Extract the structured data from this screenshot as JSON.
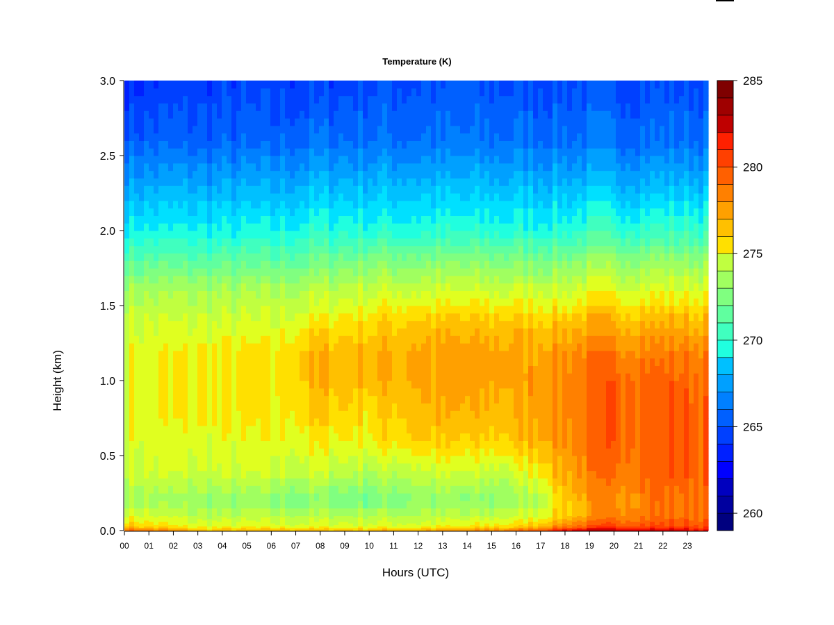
{
  "chart_data": {
    "type": "heatmap",
    "title": "Temperature (K)",
    "xlabel": "Hours (UTC)",
    "ylabel": "Height (km)",
    "x_tick_labels": [
      "00",
      "01",
      "02",
      "03",
      "04",
      "05",
      "06",
      "07",
      "08",
      "09",
      "10",
      "11",
      "12",
      "13",
      "14",
      "15",
      "16",
      "17",
      "18",
      "19",
      "20",
      "21",
      "22",
      "23"
    ],
    "y_ticks": [
      {
        "value": 0.0,
        "label": "0.0"
      },
      {
        "value": 0.5,
        "label": "0.5"
      },
      {
        "value": 1.0,
        "label": "1.0"
      },
      {
        "value": 1.5,
        "label": "1.5"
      },
      {
        "value": 2.0,
        "label": "2.0"
      },
      {
        "value": 2.5,
        "label": "2.5"
      },
      {
        "value": 3.0,
        "label": "3.0"
      }
    ],
    "xlim": [
      0,
      23.85
    ],
    "ylim": [
      0,
      3.0
    ],
    "colorbar": {
      "range": [
        259,
        285
      ],
      "levels": 26,
      "tick_values": [
        260,
        265,
        270,
        275,
        280,
        285
      ],
      "tick_labels": [
        "260",
        "265",
        "270",
        "275",
        "280",
        "285"
      ],
      "colors": [
        "#00007F",
        "#00009F",
        "#0000BF",
        "#0000DF",
        "#0000FF",
        "#0020FF",
        "#0040FF",
        "#0060FF",
        "#0080FF",
        "#00A0FF",
        "#00C0FF",
        "#00E0FF",
        "#20FFDF",
        "#40FFBF",
        "#60FF9F",
        "#80FF80",
        "#A0FF60",
        "#C0FF40",
        "#E0FF20",
        "#FFE000",
        "#FFC000",
        "#FFA000",
        "#FF8000",
        "#FF6000",
        "#FF4000",
        "#FF2000",
        "#DF0000",
        "#BF0000",
        "#9F0000",
        "#7F0000"
      ]
    },
    "temperature_profile_by_hour": {
      "hours": [
        0,
        3,
        6,
        8,
        10,
        12,
        14,
        16,
        17,
        18,
        19,
        20,
        22,
        23.85
      ],
      "heights_km": [
        0.0,
        0.03,
        0.1,
        0.2,
        0.4,
        0.6,
        0.8,
        1.0,
        1.2,
        1.4,
        1.6,
        1.8,
        2.0,
        2.3,
        2.6,
        3.0
      ],
      "values_K": [
        [
          280,
          276.5,
          275.0,
          273.5,
          274.5,
          275.0,
          275.0,
          275.0,
          275.0,
          274.5,
          273.5,
          271.5,
          269.5,
          267.5,
          265.5,
          264.0
        ],
        [
          277,
          275.0,
          274.0,
          273.0,
          274.5,
          275.0,
          275.5,
          275.5,
          275.5,
          274.5,
          273.5,
          271.5,
          269.5,
          267.5,
          265.5,
          264.5
        ],
        [
          277,
          275.0,
          274.0,
          272.5,
          274.5,
          275.0,
          275.5,
          275.5,
          275.5,
          274.5,
          273.5,
          271.5,
          269.5,
          267.5,
          265.5,
          264.5
        ],
        [
          277,
          275.0,
          274.0,
          272.5,
          274.5,
          275.5,
          276.5,
          277.0,
          277.0,
          275.5,
          274.0,
          272.0,
          270.0,
          268.0,
          266.0,
          264.5
        ],
        [
          277,
          275.0,
          274.0,
          272.0,
          274.0,
          275.5,
          276.0,
          277.0,
          277.0,
          276.0,
          274.5,
          272.5,
          270.0,
          268.0,
          266.0,
          265.0
        ],
        [
          277.5,
          275.0,
          274.0,
          273.0,
          274.5,
          276.5,
          277.0,
          277.5,
          277.5,
          276.5,
          274.5,
          272.5,
          270.0,
          268.0,
          266.0,
          265.0
        ],
        [
          278,
          275.5,
          274.0,
          272.5,
          274.5,
          276.0,
          277.0,
          277.5,
          277.5,
          276.5,
          274.5,
          272.5,
          270.0,
          268.0,
          266.0,
          265.0
        ],
        [
          279,
          276.0,
          274.5,
          273.0,
          274.5,
          276.5,
          277.0,
          277.5,
          277.5,
          276.5,
          274.5,
          272.5,
          270.0,
          268.0,
          266.0,
          265.0
        ],
        [
          280.5,
          277.0,
          275.0,
          274.0,
          276.0,
          277.5,
          278.0,
          278.0,
          277.5,
          276.5,
          274.5,
          272.5,
          270.0,
          268.0,
          266.0,
          265.0
        ],
        [
          282,
          278.5,
          276.5,
          276.5,
          277.5,
          278.0,
          278.5,
          278.5,
          278.0,
          276.5,
          274.5,
          272.5,
          270.0,
          268.0,
          266.0,
          265.0
        ],
        [
          283,
          279.5,
          277.5,
          277.5,
          278.5,
          279.0,
          279.0,
          279.0,
          278.5,
          277.0,
          275.0,
          273.0,
          270.5,
          268.0,
          266.0,
          265.0
        ],
        [
          283,
          280.0,
          278.5,
          278.0,
          279.0,
          279.5,
          279.5,
          279.5,
          278.5,
          277.0,
          275.0,
          273.0,
          270.5,
          268.0,
          266.0,
          265.0
        ],
        [
          282.5,
          280.0,
          279.0,
          279.0,
          279.5,
          279.5,
          279.5,
          279.5,
          278.5,
          277.0,
          275.0,
          273.0,
          270.5,
          268.0,
          266.0,
          265.0
        ],
        [
          282,
          280.0,
          279.0,
          279.0,
          279.5,
          279.5,
          279.5,
          279.0,
          278.5,
          277.0,
          275.0,
          273.0,
          270.5,
          268.0,
          266.0,
          265.0
        ]
      ]
    }
  }
}
